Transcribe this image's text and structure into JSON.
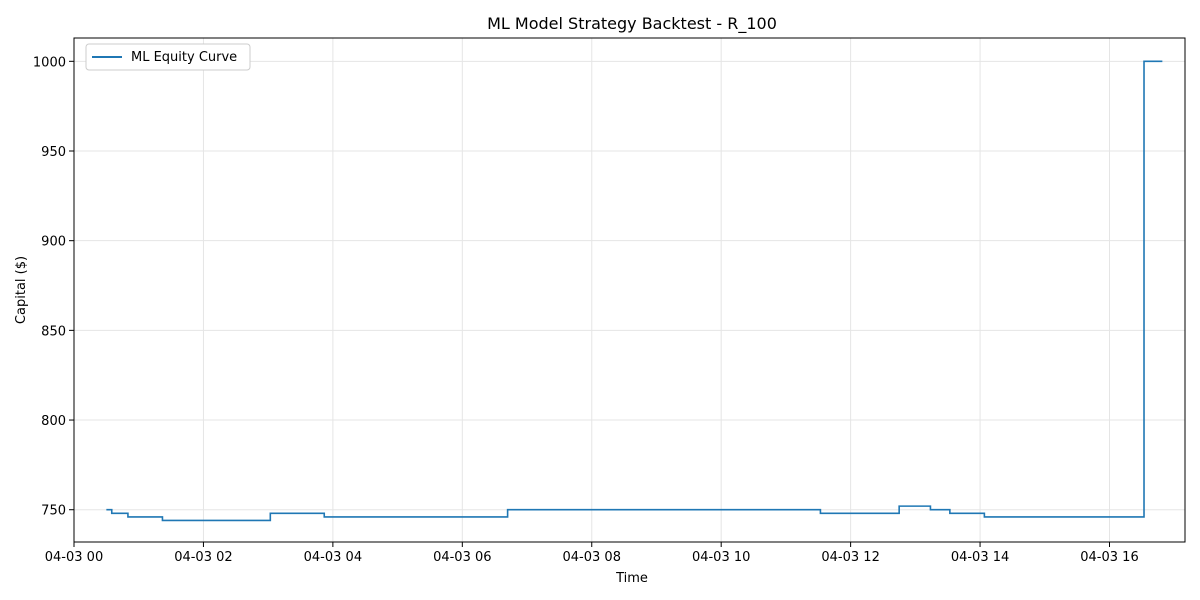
{
  "chart_data": {
    "type": "line",
    "title": "ML Model Strategy Backtest - R_100",
    "xlabel": "Time",
    "ylabel": "Capital ($)",
    "x_ticks": [
      "04-03 00",
      "04-03 02",
      "04-03 04",
      "04-03 06",
      "04-03 08",
      "04-03 10",
      "04-03 12",
      "04-03 14",
      "04-03 16"
    ],
    "y_ticks": [
      750,
      800,
      850,
      900,
      950,
      1000
    ],
    "xlim": [
      "04-03 00:00",
      "04-03 17:10"
    ],
    "ylim": [
      732,
      1013
    ],
    "grid": true,
    "legend_position": "top-left",
    "line_style": "step",
    "series": [
      {
        "name": "ML Equity Curve",
        "color": "#1f77b4",
        "x": [
          "04-03 00:30",
          "04-03 00:35",
          "04-03 00:50",
          "04-03 01:22",
          "04-03 03:02",
          "04-03 03:52",
          "04-03 06:42",
          "04-03 11:32",
          "04-03 12:45",
          "04-03 13:14",
          "04-03 13:32",
          "04-03 14:04",
          "04-03 16:32",
          "04-03 16:49"
        ],
        "y": [
          750,
          748,
          746,
          744,
          748,
          746,
          750,
          748,
          752,
          750,
          748,
          746,
          1000,
          1000
        ]
      }
    ]
  }
}
